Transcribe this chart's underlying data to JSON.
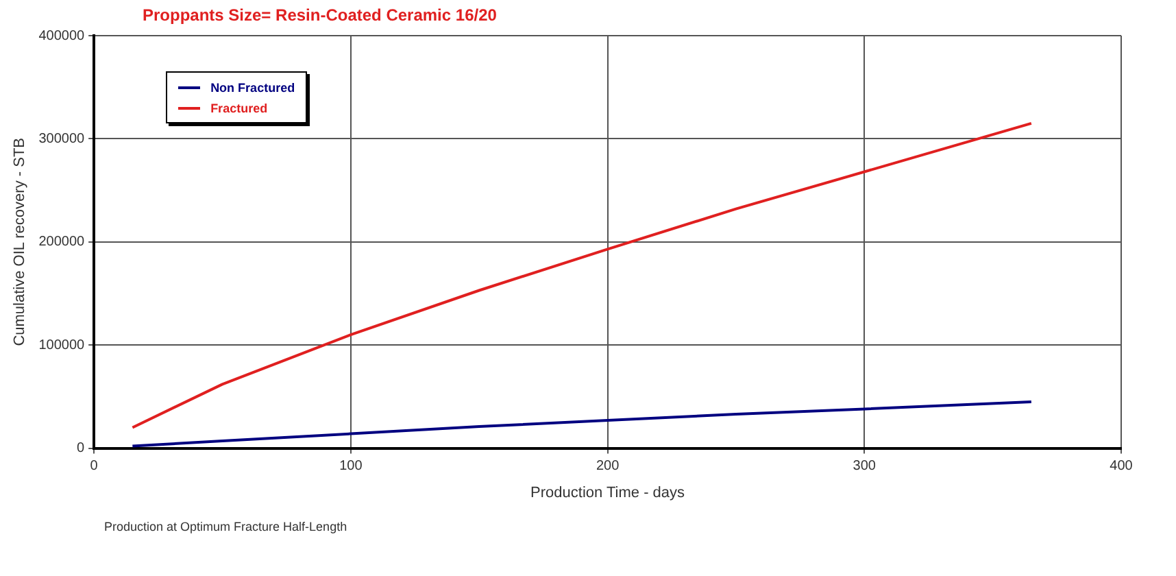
{
  "chart_data": {
    "type": "line",
    "title": "Proppants Size= Resin-Coated Ceramic 16/20",
    "xlabel": "Production Time - days",
    "ylabel": "Cumulative OIL recovery - STB",
    "annotations": [
      "Production at Optimum Fracture Half-Length"
    ],
    "x": [
      15,
      50,
      100,
      150,
      200,
      250,
      300,
      365
    ],
    "series": [
      {
        "name": "Non Fractured",
        "color": "#000080",
        "values": [
          2000,
          7000,
          14000,
          21000,
          27000,
          33000,
          38000,
          45000
        ]
      },
      {
        "name": "Fractured",
        "color": "#e02020",
        "values": [
          20000,
          62000,
          110000,
          153000,
          193000,
          232000,
          268000,
          315000
        ]
      }
    ],
    "xlim": [
      0,
      400
    ],
    "xticks": [
      0,
      100,
      200,
      300,
      400
    ],
    "ylim": [
      0,
      400000
    ],
    "yticks": [
      0,
      100000,
      200000,
      300000,
      400000
    ],
    "grid": true,
    "legend": "top left",
    "marker": "none",
    "line_style": "solid"
  }
}
